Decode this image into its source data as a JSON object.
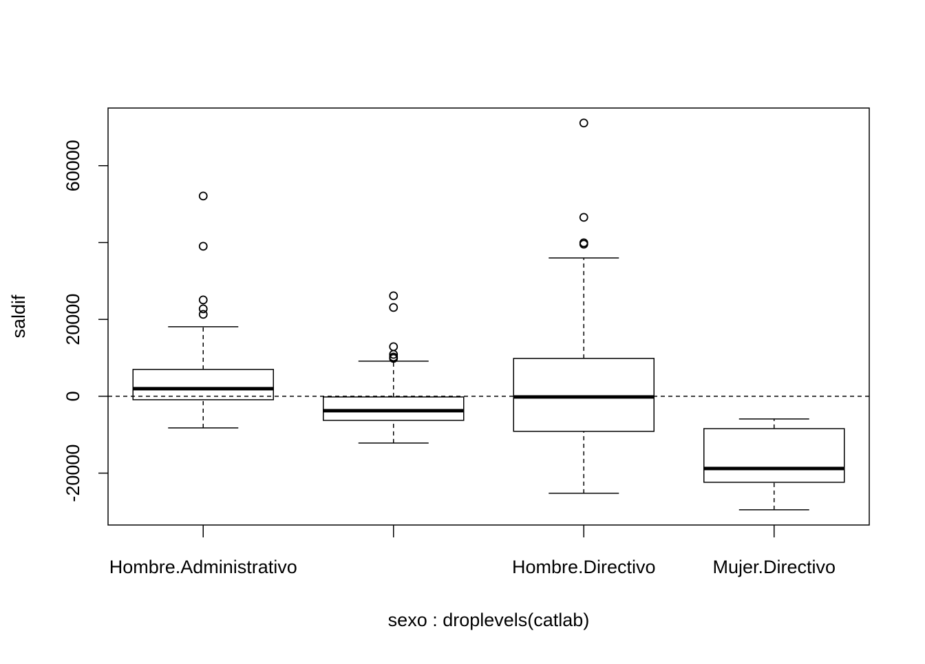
{
  "chart_data": {
    "type": "box",
    "xlabel": "sexo : droplevels(catlab)",
    "ylabel": "saldif",
    "categories": [
      "Hombre.Administrativo",
      null,
      "Hombre.Directivo",
      "Mujer.Directivo"
    ],
    "boxes": [
      {
        "low": -8240,
        "q1": -900,
        "median": 1970,
        "q3": 6980,
        "high": 18080,
        "outliers": [
          52100,
          39030,
          25070,
          22740,
          21310
        ]
      },
      {
        "low": -12180,
        "q1": -6270,
        "median": -3760,
        "q3": -180,
        "high": 9130,
        "outliers": [
          26140,
          23100,
          12900,
          10900,
          10200,
          9850
        ]
      },
      {
        "low": -25250,
        "q1": -9130,
        "median": -180,
        "q3": 9850,
        "high": 36000,
        "outliers": [
          71100,
          46550,
          39930,
          39570
        ]
      },
      {
        "low": -29540,
        "q1": -22380,
        "median": -18800,
        "q3": -8420,
        "high": -5910,
        "outliers": []
      }
    ],
    "color": "#000000",
    "ylim": [
      -33500,
      75000
    ],
    "yticks": [
      -20000,
      0,
      20000,
      {
        "value": 40000,
        "label": null
      },
      60000
    ],
    "reference_line": 0
  }
}
